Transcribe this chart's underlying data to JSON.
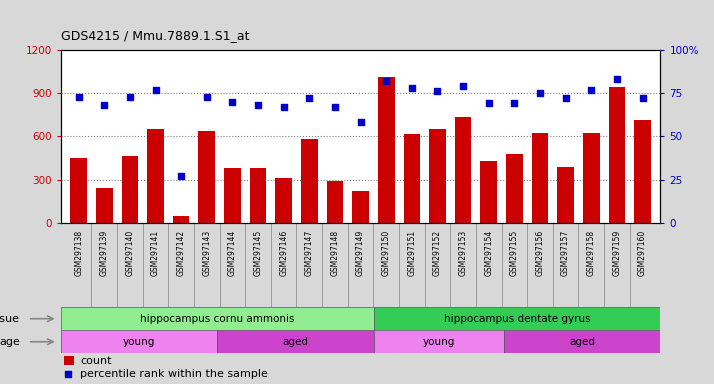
{
  "title": "GDS4215 / Mmu.7889.1.S1_at",
  "samples": [
    "GSM297138",
    "GSM297139",
    "GSM297140",
    "GSM297141",
    "GSM297142",
    "GSM297143",
    "GSM297144",
    "GSM297145",
    "GSM297146",
    "GSM297147",
    "GSM297148",
    "GSM297149",
    "GSM297150",
    "GSM297151",
    "GSM297152",
    "GSM297153",
    "GSM297154",
    "GSM297155",
    "GSM297156",
    "GSM297157",
    "GSM297158",
    "GSM297159",
    "GSM297160"
  ],
  "counts": [
    450,
    240,
    460,
    650,
    50,
    640,
    380,
    380,
    310,
    580,
    290,
    220,
    1010,
    615,
    650,
    735,
    430,
    480,
    620,
    390,
    620,
    940,
    710
  ],
  "percentiles": [
    73,
    68,
    73,
    77,
    27,
    73,
    70,
    68,
    67,
    72,
    67,
    58,
    82,
    78,
    76,
    79,
    69,
    69,
    75,
    72,
    77,
    83,
    72
  ],
  "bar_color": "#cc0000",
  "dot_color": "#0000cc",
  "ylim_left": [
    0,
    1200
  ],
  "ylim_right": [
    0,
    100
  ],
  "yticks_left": [
    0,
    300,
    600,
    900,
    1200
  ],
  "yticks_right": [
    0,
    25,
    50,
    75,
    100
  ],
  "ytick_labels_right": [
    "0",
    "25",
    "50",
    "75",
    "100%"
  ],
  "ytick_labels_left": [
    "0",
    "300",
    "600",
    "900",
    "1200"
  ],
  "tissue_groups": [
    {
      "label": "hippocampus cornu ammonis",
      "start": 0,
      "end": 12,
      "color": "#90ee90"
    },
    {
      "label": "hippocampus dentate gyrus",
      "start": 12,
      "end": 23,
      "color": "#33cc55"
    }
  ],
  "age_groups": [
    {
      "label": "young",
      "start": 0,
      "end": 6,
      "color": "#ee82ee"
    },
    {
      "label": "aged",
      "start": 6,
      "end": 12,
      "color": "#cc44cc"
    },
    {
      "label": "young",
      "start": 12,
      "end": 17,
      "color": "#ee82ee"
    },
    {
      "label": "aged",
      "start": 17,
      "end": 23,
      "color": "#cc44cc"
    }
  ],
  "legend_count_label": "count",
  "legend_pct_label": "percentile rank within the sample",
  "tissue_label": "tissue",
  "age_label": "age",
  "fig_bg_color": "#d8d8d8",
  "plot_bg_color": "#ffffff",
  "xticklabel_bg": "#c8c8c8"
}
